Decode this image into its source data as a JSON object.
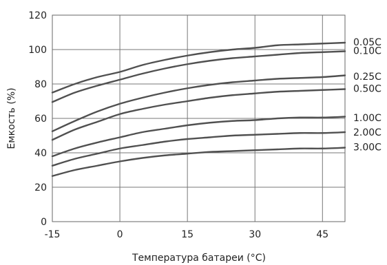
{
  "chart_data": {
    "type": "line",
    "xlabel": "Температура батареи (°С)",
    "ylabel": "Емкость (%)",
    "xlim": [
      -15,
      50
    ],
    "ylim": [
      0,
      120
    ],
    "xticks": [
      "-15",
      "0",
      "15",
      "30",
      "45"
    ],
    "yticks": [
      "0",
      "20",
      "40",
      "60",
      "80",
      "100",
      "120"
    ],
    "grid": true,
    "x": [
      -15,
      -10,
      -5,
      0,
      5,
      10,
      15,
      20,
      25,
      30,
      35,
      40,
      45,
      50
    ],
    "series": [
      {
        "name": "0.05C",
        "values": [
          75,
          80,
          84,
          87,
          91,
          94,
          96.5,
          98.5,
          100,
          101,
          102.5,
          103,
          103.5,
          104
        ]
      },
      {
        "name": "0.10C",
        "values": [
          69.5,
          75,
          79,
          82.5,
          86,
          89,
          91.5,
          93.5,
          95,
          96,
          97,
          98,
          98.5,
          99
        ]
      },
      {
        "name": "0.25C",
        "values": [
          52.5,
          58.5,
          64,
          68.5,
          72,
          75,
          77.5,
          79.5,
          81,
          82,
          83,
          83.5,
          84,
          85
        ]
      },
      {
        "name": "0.50C",
        "values": [
          47.5,
          53.5,
          58,
          62.5,
          65.5,
          68,
          70,
          72,
          73.5,
          74.5,
          75.5,
          76,
          76.5,
          77
        ]
      },
      {
        "name": "1.00C",
        "values": [
          38,
          42.5,
          46,
          49,
          52,
          54,
          56,
          57.5,
          58.5,
          59,
          60,
          60.5,
          60.5,
          61
        ]
      },
      {
        "name": "2.00C",
        "values": [
          32.5,
          36.5,
          39.5,
          42.5,
          44.5,
          46.5,
          48,
          49,
          50,
          50.5,
          51,
          51.5,
          51.5,
          52
        ]
      },
      {
        "name": "3.00C",
        "values": [
          26.5,
          30,
          32.5,
          35,
          37,
          38.5,
          39.5,
          40.5,
          41,
          41.5,
          42,
          42.5,
          42.5,
          43
        ]
      }
    ],
    "colors": {
      "line": "#505050",
      "grid": "#777777",
      "text": "#222222"
    }
  }
}
